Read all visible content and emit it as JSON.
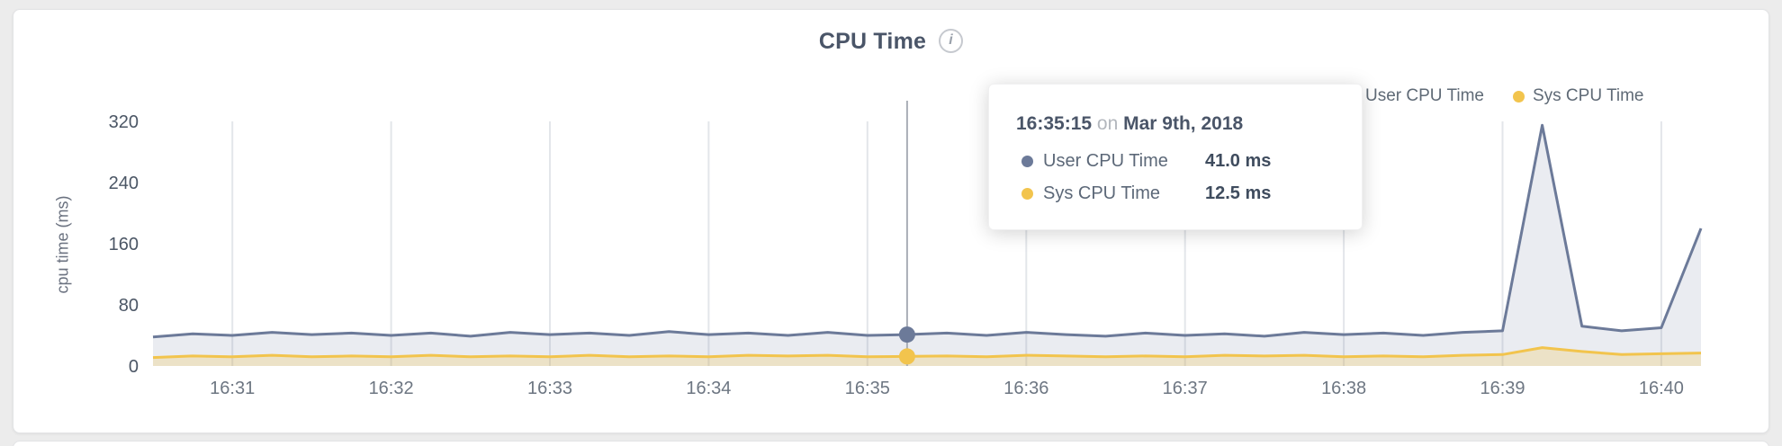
{
  "page": {
    "background": "#ececec"
  },
  "header": {
    "title": "CPU Time",
    "info_glyph": "i"
  },
  "tooltip": {
    "time": "16:35:15",
    "connector": "on",
    "date": "Mar 9th, 2018",
    "rows": [
      {
        "label": "User CPU Time",
        "value": "41.0 ms"
      },
      {
        "label": "Sys CPU Time",
        "value": "12.5 ms"
      }
    ]
  },
  "chart_data": {
    "type": "area",
    "title": "CPU Time",
    "xlabel": "",
    "ylabel": "cpu time (ms)",
    "ylim": [
      0,
      320
    ],
    "y_ticks": [
      320,
      240,
      160,
      80,
      0
    ],
    "x_ticks": [
      "16:31",
      "16:32",
      "16:33",
      "16:34",
      "16:35",
      "16:36",
      "16:37",
      "16:38",
      "16:39",
      "16:40"
    ],
    "grid": "vertical",
    "legend_position": "top-right",
    "hover_point": {
      "x": "16:35:15",
      "values": [
        41.0,
        12.5
      ]
    },
    "x": [
      "16:30:30",
      "16:30:45",
      "16:31:00",
      "16:31:15",
      "16:31:30",
      "16:31:45",
      "16:32:00",
      "16:32:15",
      "16:32:30",
      "16:32:45",
      "16:33:00",
      "16:33:15",
      "16:33:30",
      "16:33:45",
      "16:34:00",
      "16:34:15",
      "16:34:30",
      "16:34:45",
      "16:35:00",
      "16:35:15",
      "16:35:30",
      "16:35:45",
      "16:36:00",
      "16:36:15",
      "16:36:30",
      "16:36:45",
      "16:37:00",
      "16:37:15",
      "16:37:30",
      "16:37:45",
      "16:38:00",
      "16:38:15",
      "16:38:30",
      "16:38:45",
      "16:39:00",
      "16:39:15",
      "16:39:30",
      "16:39:45",
      "16:40:00",
      "16:40:15"
    ],
    "series": [
      {
        "name": "User CPU Time",
        "color": "#6c7a99",
        "fill": "rgba(108,122,153,0.14)",
        "values": [
          38,
          42,
          40,
          44,
          41,
          43,
          40,
          43,
          39,
          44,
          41,
          43,
          40,
          45,
          41,
          43,
          40,
          44,
          40,
          41,
          43,
          40,
          44,
          41,
          39,
          43,
          40,
          42,
          39,
          44,
          41,
          43,
          40,
          44,
          46,
          315,
          52,
          46,
          50,
          180
        ]
      },
      {
        "name": "Sys CPU Time",
        "color": "#f2c44d",
        "fill": "rgba(242,196,77,0.25)",
        "values": [
          11,
          13,
          12,
          14,
          12,
          13,
          12,
          14,
          12,
          13,
          12,
          14,
          12,
          13,
          12,
          14,
          13,
          14,
          12,
          12.5,
          13,
          12,
          14,
          13,
          12,
          13,
          12,
          14,
          13,
          14,
          12,
          13,
          12,
          14,
          15,
          24,
          19,
          15,
          16,
          17
        ]
      }
    ]
  }
}
